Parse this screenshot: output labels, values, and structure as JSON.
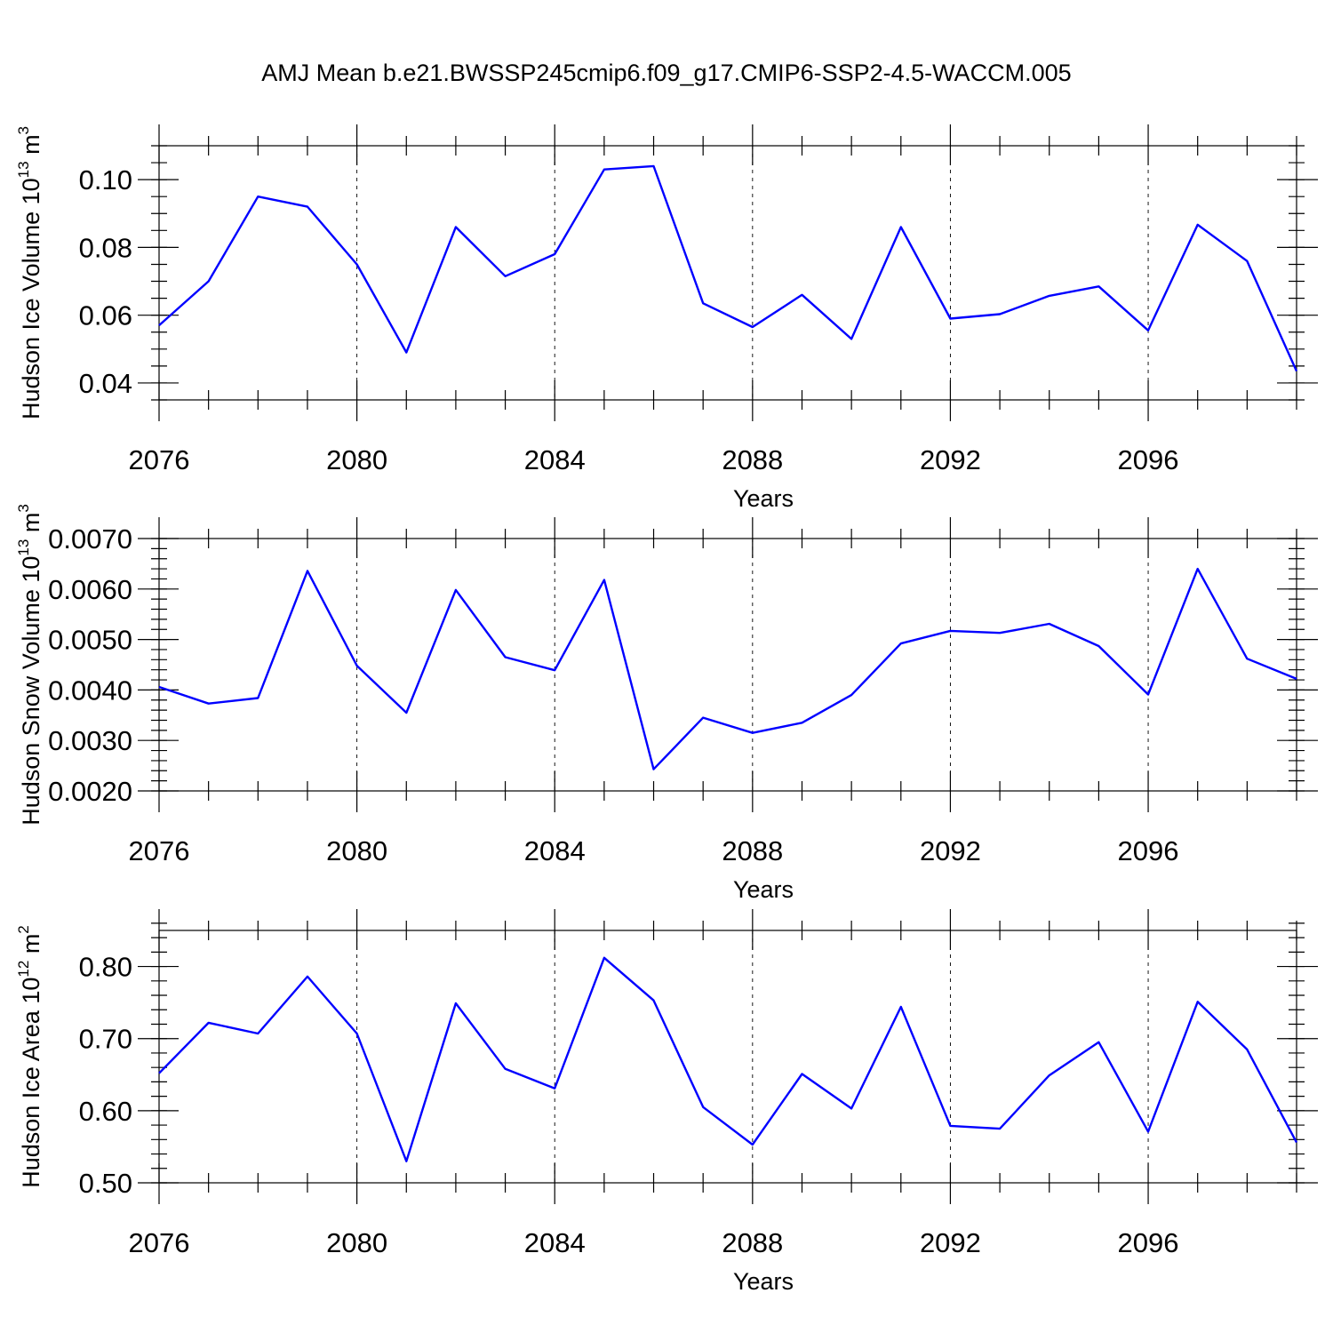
{
  "title": "AMJ Mean b.e21.BWSSP245cmip6.f09_g17.CMIP6-SSP2-4.5-WACCM.005",
  "colors": {
    "series": "#0000ff",
    "axes": "#000000"
  },
  "chart_data": [
    {
      "type": "line",
      "xlabel": "Years",
      "ylabel_main": "Hudson Ice Volume 10",
      "ylabel_exp": "13",
      "ylabel_unit": " m",
      "ylabel_unit_exp": "3",
      "xlim": [
        2076,
        2099
      ],
      "ylim": [
        0.035,
        0.11
      ],
      "xticks": [
        2076,
        2080,
        2084,
        2088,
        2092,
        2096
      ],
      "xtick_labels": [
        "2076",
        "2080",
        "2084",
        "2088",
        "2092",
        "2096"
      ],
      "yticks": [
        0.04,
        0.06,
        0.08,
        0.1
      ],
      "ytick_labels": [
        "0.04",
        "0.06",
        "0.08",
        "0.10"
      ],
      "y_minor_step": 0.005,
      "grid": "x-dashed",
      "x": [
        2076,
        2077,
        2078,
        2079,
        2080,
        2081,
        2082,
        2083,
        2084,
        2085,
        2086,
        2087,
        2088,
        2089,
        2090,
        2091,
        2092,
        2093,
        2094,
        2095,
        2096,
        2097,
        2098,
        2099
      ],
      "values": [
        0.057,
        0.07,
        0.095,
        0.092,
        0.075,
        0.049,
        0.086,
        0.0715,
        0.078,
        0.103,
        0.104,
        0.0635,
        0.0565,
        0.066,
        0.053,
        0.086,
        0.059,
        0.0603,
        0.0657,
        0.0685,
        0.0555,
        0.0867,
        0.076,
        0.0435
      ]
    },
    {
      "type": "line",
      "xlabel": "Years",
      "ylabel_main": "Hudson Snow Volume 10",
      "ylabel_exp": "13",
      "ylabel_unit": " m",
      "ylabel_unit_exp": "3",
      "xlim": [
        2076,
        2099
      ],
      "ylim": [
        0.002,
        0.007
      ],
      "xticks": [
        2076,
        2080,
        2084,
        2088,
        2092,
        2096
      ],
      "xtick_labels": [
        "2076",
        "2080",
        "2084",
        "2088",
        "2092",
        "2096"
      ],
      "yticks": [
        0.002,
        0.003,
        0.004,
        0.005,
        0.006,
        0.007
      ],
      "ytick_labels": [
        "0.0020",
        "0.0030",
        "0.0040",
        "0.0050",
        "0.0060",
        "0.0070"
      ],
      "y_minor_step": 0.0002,
      "grid": "x-dashed",
      "x": [
        2076,
        2077,
        2078,
        2079,
        2080,
        2081,
        2082,
        2083,
        2084,
        2085,
        2086,
        2087,
        2088,
        2089,
        2090,
        2091,
        2092,
        2093,
        2094,
        2095,
        2096,
        2097,
        2098,
        2099
      ],
      "values": [
        0.00406,
        0.00373,
        0.00384,
        0.00636,
        0.00448,
        0.00355,
        0.00598,
        0.00465,
        0.00439,
        0.00618,
        0.00243,
        0.00345,
        0.00315,
        0.00335,
        0.0039,
        0.00492,
        0.00517,
        0.00513,
        0.00531,
        0.00487,
        0.00391,
        0.0064,
        0.00462,
        0.00422
      ]
    },
    {
      "type": "line",
      "xlabel": "Years",
      "ylabel_main": "Hudson Ice Area 10",
      "ylabel_exp": "12",
      "ylabel_unit": " m",
      "ylabel_unit_exp": "2",
      "xlim": [
        2076,
        2099
      ],
      "ylim": [
        0.5,
        0.85
      ],
      "xticks": [
        2076,
        2080,
        2084,
        2088,
        2092,
        2096
      ],
      "xtick_labels": [
        "2076",
        "2080",
        "2084",
        "2088",
        "2092",
        "2096"
      ],
      "yticks": [
        0.5,
        0.6,
        0.7,
        0.8
      ],
      "ytick_labels": [
        "0.50",
        "0.60",
        "0.70",
        "0.80"
      ],
      "y_minor_step": 0.02,
      "grid": "x-dashed",
      "x": [
        2076,
        2077,
        2078,
        2079,
        2080,
        2081,
        2082,
        2083,
        2084,
        2085,
        2086,
        2087,
        2088,
        2089,
        2090,
        2091,
        2092,
        2093,
        2094,
        2095,
        2096,
        2097,
        2098,
        2099
      ],
      "values": [
        0.652,
        0.722,
        0.707,
        0.786,
        0.707,
        0.53,
        0.749,
        0.658,
        0.631,
        0.812,
        0.753,
        0.605,
        0.553,
        0.651,
        0.603,
        0.744,
        0.579,
        0.575,
        0.649,
        0.695,
        0.571,
        0.751,
        0.685,
        0.556
      ]
    }
  ]
}
